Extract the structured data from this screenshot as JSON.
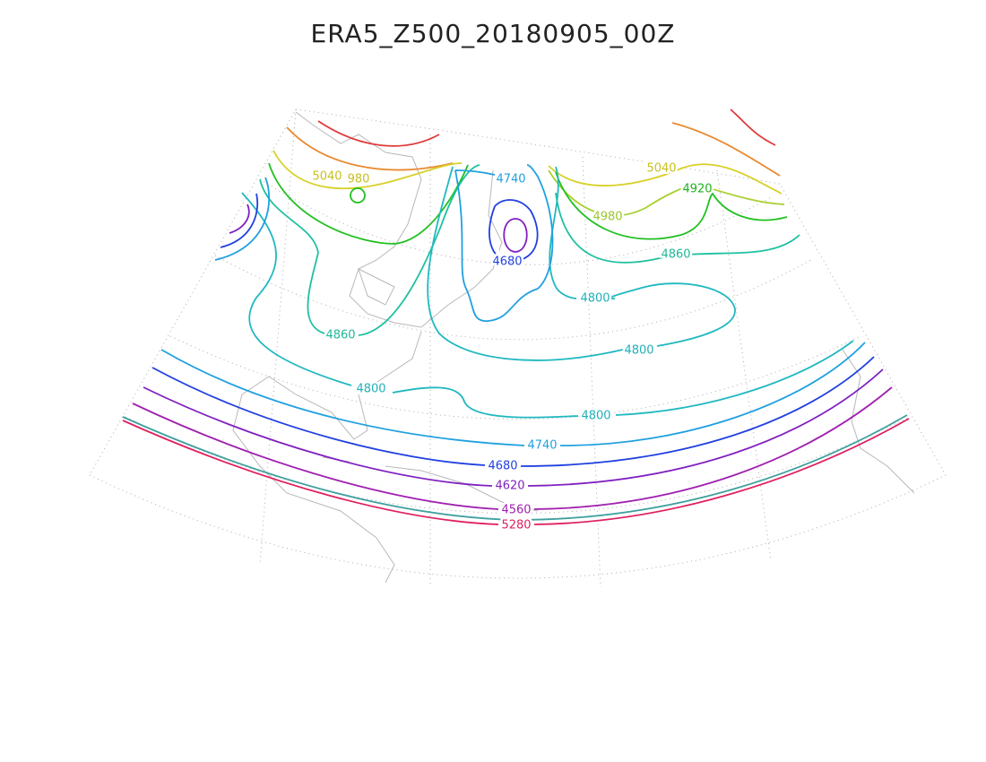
{
  "title": "ERA5_Z500_20180905_00Z",
  "contour_labels": [
    "5040",
    "980",
    "4740",
    "5040",
    "4920",
    "4980",
    "4680",
    "4860",
    "4800",
    "4860",
    "4800",
    "4800",
    "4800",
    "4740",
    "4680",
    "4620",
    "4560",
    "5280"
  ]
}
